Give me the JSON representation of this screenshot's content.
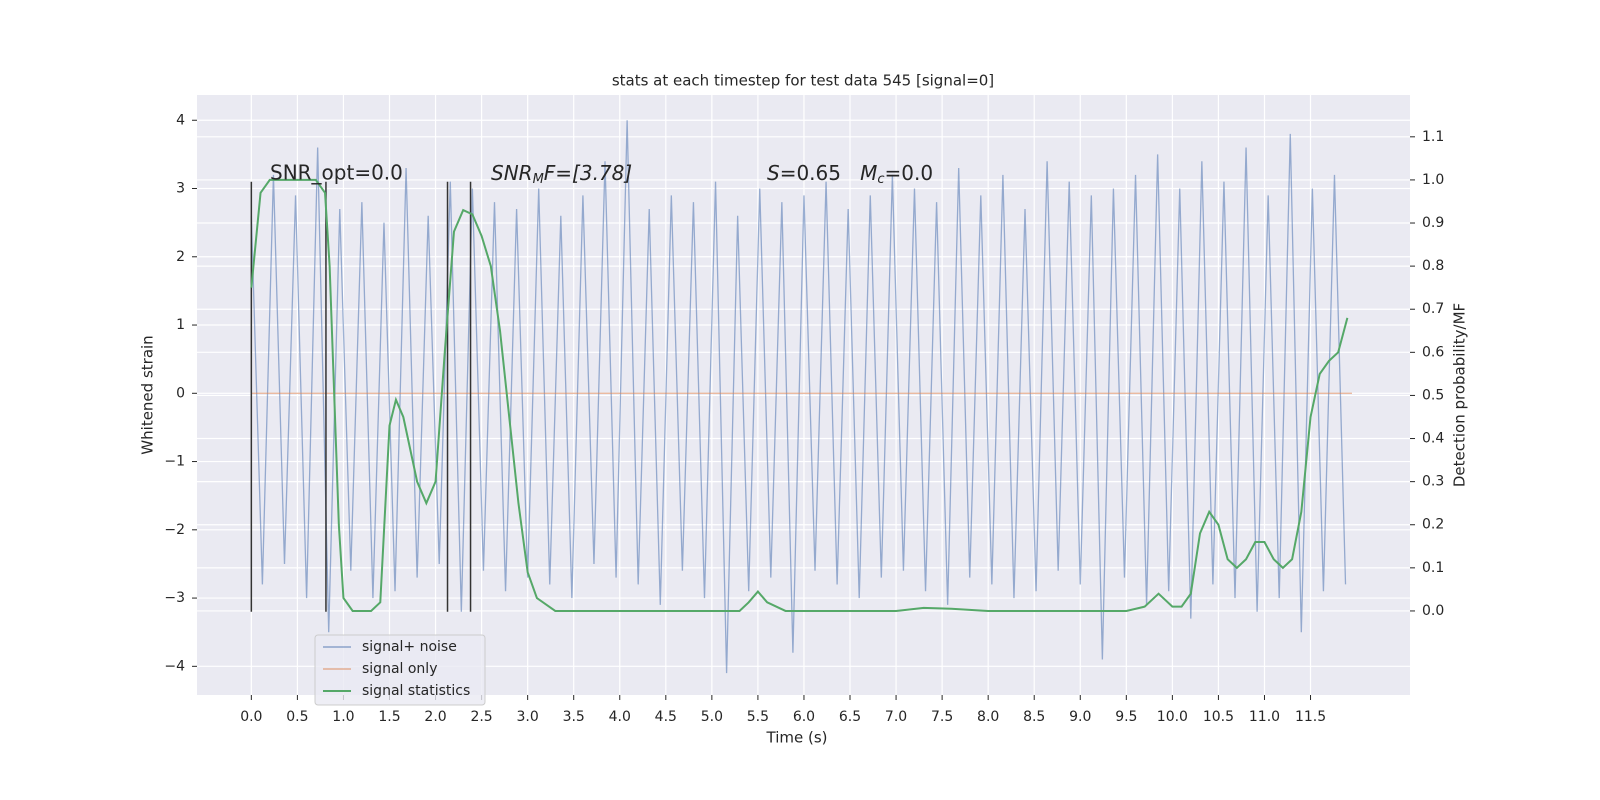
{
  "chart_data": {
    "type": "line",
    "title": "stats at each timestep for test data 545 [signal=0]",
    "xlabel": "Time (s)",
    "ylabel": "Whitened strain",
    "y2label": "Detection probability/MF",
    "annotations": [
      "SNR_opt=0.0",
      [
        "SNR",
        "M",
        "F=[3.78]"
      ],
      [
        "S",
        "=0.65   ",
        "M",
        "c",
        "=0.0"
      ]
    ],
    "xlim": [
      -0.59,
      12.58
    ],
    "ylim": [
      -4.42,
      4.37
    ],
    "y2lim": [
      -0.195,
      1.197
    ],
    "xticks": [
      {
        "value": 0,
        "label": "0.0"
      },
      {
        "value": 0.5,
        "label": "0.5"
      },
      {
        "value": 1,
        "label": "1.0"
      },
      {
        "value": 1.5,
        "label": "1.5"
      },
      {
        "value": 2,
        "label": "2.0"
      },
      {
        "value": 2.5,
        "label": "2.5"
      },
      {
        "value": 3,
        "label": "3.0"
      },
      {
        "value": 3.5,
        "label": "3.5"
      },
      {
        "value": 4,
        "label": "4.0"
      },
      {
        "value": 4.5,
        "label": "4.5"
      },
      {
        "value": 5,
        "label": "5.0"
      },
      {
        "value": 5.5,
        "label": "5.5"
      },
      {
        "value": 6,
        "label": "6.0"
      },
      {
        "value": 6.5,
        "label": "6.5"
      },
      {
        "value": 7,
        "label": "7.0"
      },
      {
        "value": 7.5,
        "label": "7.5"
      },
      {
        "value": 8,
        "label": "8.0"
      },
      {
        "value": 8.5,
        "label": "8.5"
      },
      {
        "value": 9,
        "label": "9.0"
      },
      {
        "value": 9.5,
        "label": "9.5"
      },
      {
        "value": 10,
        "label": "10.0"
      },
      {
        "value": 10.5,
        "label": "10.5"
      },
      {
        "value": 11,
        "label": "11.0"
      },
      {
        "value": 11.5,
        "label": "11.5"
      }
    ],
    "yticks": [
      {
        "value": -4,
        "label": "−4"
      },
      {
        "value": -3,
        "label": "−3"
      },
      {
        "value": -2,
        "label": "−2"
      },
      {
        "value": -1,
        "label": "−1"
      },
      0,
      1,
      2,
      3,
      4
    ],
    "y2ticks": [
      {
        "value": 0,
        "label": "0.0"
      },
      {
        "value": 0.1,
        "label": "0.1"
      },
      {
        "value": 0.2,
        "label": "0.2"
      },
      {
        "value": 0.3,
        "label": "0.3"
      },
      {
        "value": 0.4,
        "label": "0.4"
      },
      {
        "value": 0.5,
        "label": "0.5"
      },
      {
        "value": 0.6,
        "label": "0.6"
      },
      {
        "value": 0.7,
        "label": "0.7"
      },
      {
        "value": 0.8,
        "label": "0.8"
      },
      {
        "value": 0.9,
        "label": "0.9"
      },
      {
        "value": 1,
        "label": "1.0"
      },
      {
        "value": 1.1,
        "label": "1.1"
      }
    ],
    "grid": true,
    "legend": "lower left",
    "vlines": {
      "x": [
        0,
        0.81,
        2.13,
        2.38
      ],
      "ymin": -3.2,
      "ymax": 3.1,
      "color": "#333333"
    },
    "series": [
      {
        "name": "signal+ noise",
        "color": "#4c72b0",
        "axis": "y",
        "x": [
          0,
          0.12,
          0.24,
          0.36,
          0.48,
          0.6,
          0.72,
          0.84,
          0.96,
          1.08,
          1.2,
          1.32,
          1.44,
          1.56,
          1.68,
          1.8,
          1.92,
          2.04,
          2.16,
          2.28,
          2.4,
          2.52,
          2.64,
          2.76,
          2.88,
          3,
          3.12,
          3.24,
          3.36,
          3.48,
          3.6,
          3.72,
          3.84,
          3.96,
          4.08,
          4.2,
          4.32,
          4.44,
          4.56,
          4.68,
          4.8,
          4.92,
          5.04,
          5.16,
          5.28,
          5.4,
          5.52,
          5.64,
          5.76,
          5.88,
          6,
          6.12,
          6.24,
          6.36,
          6.48,
          6.6,
          6.72,
          6.84,
          6.96,
          7.08,
          7.2,
          7.32,
          7.44,
          7.56,
          7.68,
          7.8,
          7.92,
          8.04,
          8.16,
          8.28,
          8.4,
          8.52,
          8.64,
          8.76,
          8.88,
          9,
          9.12,
          9.24,
          9.36,
          9.48,
          9.6,
          9.72,
          9.84,
          9.96,
          10.08,
          10.2,
          10.32,
          10.44,
          10.56,
          10.68,
          10.8,
          10.92,
          11.04,
          11.16,
          11.28,
          11.4,
          11.52,
          11.64,
          11.76,
          11.88
        ],
        "values": [
          2.6,
          -2.8,
          3.2,
          -2.5,
          2.9,
          -3.0,
          3.6,
          -3.5,
          2.7,
          -2.6,
          2.8,
          -3.0,
          2.5,
          -2.9,
          3.3,
          -2.7,
          2.6,
          -2.5,
          3.1,
          -3.2,
          3.0,
          -2.6,
          2.8,
          -2.9,
          2.7,
          -2.7,
          3.0,
          -2.8,
          2.6,
          -3.0,
          2.9,
          -2.5,
          3.4,
          -2.7,
          4.0,
          -2.8,
          2.7,
          -3.1,
          2.9,
          -2.6,
          2.8,
          -3.0,
          3.1,
          -4.1,
          2.6,
          -2.9,
          3.0,
          -2.7,
          2.8,
          -3.8,
          2.9,
          -2.6,
          3.1,
          -2.8,
          2.7,
          -3.0,
          2.9,
          -2.7,
          3.2,
          -2.6,
          3.0,
          -2.9,
          2.8,
          -3.1,
          3.3,
          -2.7,
          2.9,
          -2.8,
          3.2,
          -3.0,
          2.7,
          -2.9,
          3.4,
          -2.6,
          3.1,
          -2.8,
          2.9,
          -3.9,
          3.0,
          -2.7,
          3.2,
          -3.1,
          3.5,
          -2.9,
          3.0,
          -3.3,
          3.4,
          -2.8,
          3.1,
          -3.0,
          3.6,
          -3.2,
          2.9,
          -3.0,
          3.8,
          -3.5,
          3.0,
          -2.9,
          3.2,
          -2.8
        ]
      },
      {
        "name": "signal only",
        "color": "#dd8452",
        "axis": "y",
        "x": [
          0,
          11.95
        ],
        "values": [
          0,
          0
        ]
      },
      {
        "name": "signal statistics",
        "color": "#55a868",
        "axis": "y2",
        "x": [
          0,
          0.1,
          0.2,
          0.3,
          0.5,
          0.7,
          0.8,
          0.85,
          0.9,
          0.95,
          1.0,
          1.1,
          1.3,
          1.4,
          1.5,
          1.57,
          1.65,
          1.8,
          1.9,
          2.0,
          2.1,
          2.2,
          2.3,
          2.4,
          2.5,
          2.6,
          2.7,
          2.8,
          2.9,
          3.0,
          3.1,
          3.3,
          4.0,
          4.2,
          5.0,
          5.3,
          5.4,
          5.5,
          5.6,
          5.8,
          7.0,
          7.3,
          7.6,
          8.0,
          9.5,
          9.7,
          9.85,
          10.0,
          10.1,
          10.2,
          10.3,
          10.4,
          10.5,
          10.6,
          10.7,
          10.8,
          10.9,
          11.0,
          11.1,
          11.2,
          11.3,
          11.4,
          11.5,
          11.6,
          11.7,
          11.8,
          11.9
        ],
        "values": [
          0.75,
          0.97,
          1.0,
          1.0,
          1.0,
          1.0,
          0.97,
          0.8,
          0.5,
          0.2,
          0.03,
          0.0,
          0.0,
          0.02,
          0.43,
          0.49,
          0.45,
          0.3,
          0.25,
          0.3,
          0.6,
          0.88,
          0.93,
          0.92,
          0.87,
          0.8,
          0.65,
          0.45,
          0.25,
          0.09,
          0.03,
          0.0,
          0.0,
          0.0,
          0.0,
          0.0,
          0.02,
          0.045,
          0.02,
          0.0,
          0.0,
          0.007,
          0.005,
          0.0,
          0.0,
          0.01,
          0.04,
          0.01,
          0.01,
          0.04,
          0.18,
          0.23,
          0.2,
          0.12,
          0.1,
          0.12,
          0.16,
          0.16,
          0.12,
          0.1,
          0.12,
          0.23,
          0.45,
          0.55,
          0.58,
          0.6,
          0.68
        ]
      }
    ]
  }
}
